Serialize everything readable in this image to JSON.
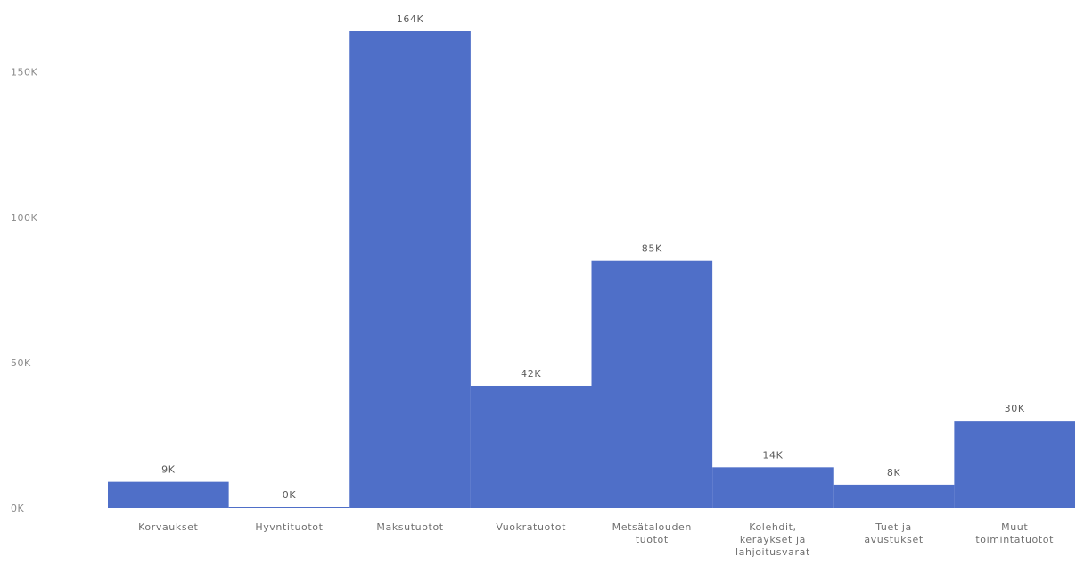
{
  "chart_data": {
    "type": "bar",
    "title": "",
    "xlabel": "",
    "ylabel": "",
    "categories": [
      [
        "Korvaukset"
      ],
      [
        "Hyvntituotot"
      ],
      [
        "Maksutuotot"
      ],
      [
        "Vuokratuotot"
      ],
      [
        "Metsätalouden",
        "tuotot"
      ],
      [
        "Kolehdit,",
        "keräykset ja",
        "lahjoitusvarat"
      ],
      [
        "Tuet ja",
        "avustukset"
      ],
      [
        "Muut",
        "toimintatuotot"
      ]
    ],
    "values": [
      9000,
      0,
      164000,
      42000,
      85000,
      14000,
      8000,
      30000
    ],
    "data_labels": [
      "9K",
      "0K",
      "164K",
      "42K",
      "85K",
      "14K",
      "8K",
      "30K"
    ],
    "y_ticks": [
      0,
      50000,
      100000,
      150000
    ],
    "y_tick_labels": [
      "0K",
      "50K",
      "100K",
      "150K"
    ],
    "ylim": [
      0,
      164000
    ],
    "grid": false,
    "legend": "none",
    "bar_color": "#4f6fc8"
  }
}
